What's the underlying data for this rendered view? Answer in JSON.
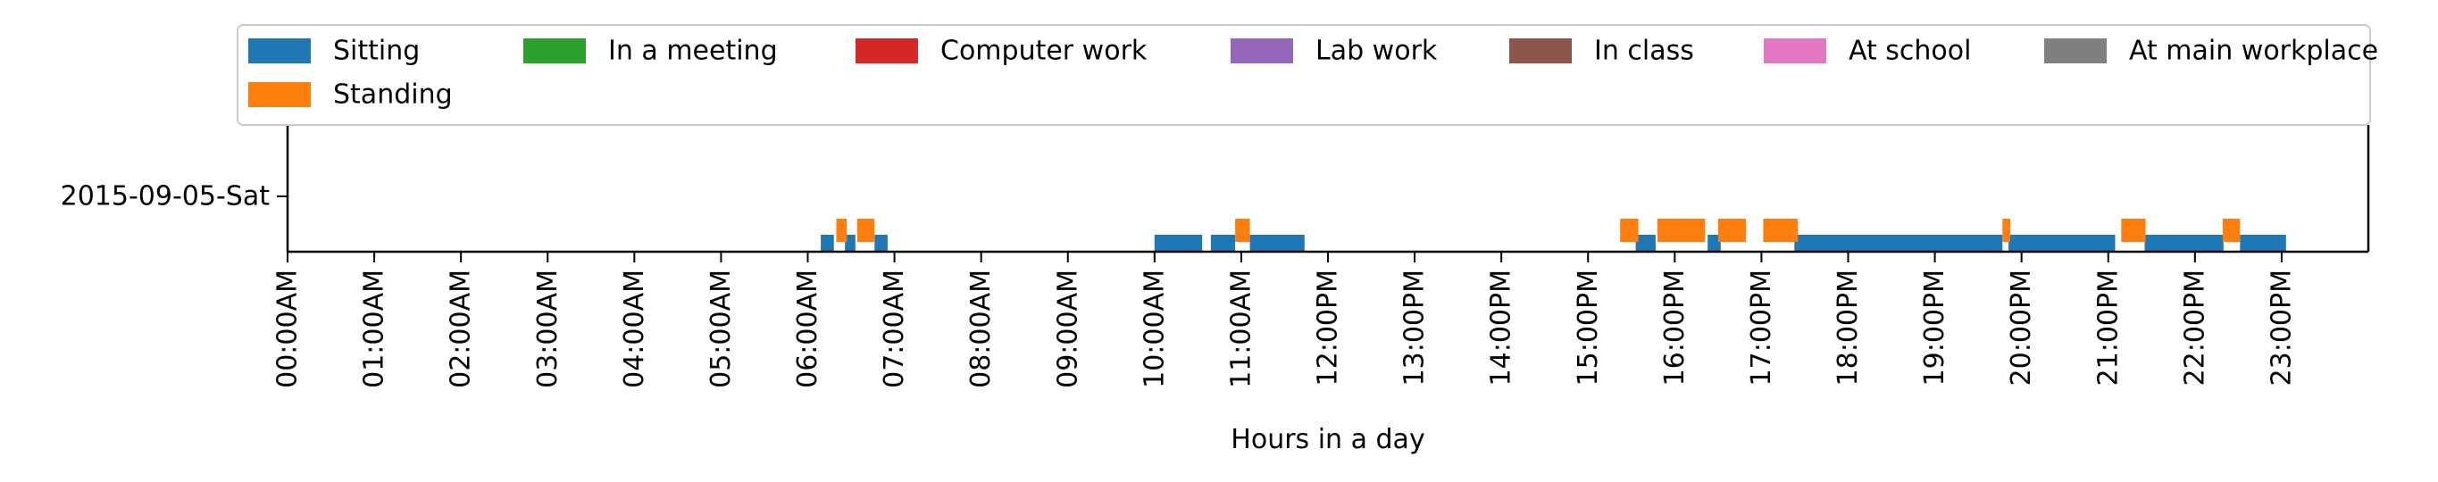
{
  "chart_data": {
    "type": "timeline",
    "xlabel": "Hours in a day",
    "ylabel": "",
    "xlim": [
      0,
      24
    ],
    "x_unit": "hours",
    "x_ticks": [
      0,
      1,
      2,
      3,
      4,
      5,
      6,
      7,
      8,
      9,
      10,
      11,
      12,
      13,
      14,
      15,
      16,
      17,
      18,
      19,
      20,
      21,
      22,
      23
    ],
    "x_tick_labels": [
      "00:00AM",
      "01:00AM",
      "02:00AM",
      "03:00AM",
      "04:00AM",
      "05:00AM",
      "06:00AM",
      "07:00AM",
      "08:00AM",
      "09:00AM",
      "10:00AM",
      "11:00AM",
      "12:00PM",
      "13:00PM",
      "14:00PM",
      "15:00PM",
      "16:00PM",
      "17:00PM",
      "18:00PM",
      "19:00PM",
      "20:00PM",
      "21:00PM",
      "22:00PM",
      "23:00PM"
    ],
    "categories": [
      "2015-09-05-Sat"
    ],
    "grid": false,
    "legend_position": "top",
    "legend_columns": 7,
    "series": [
      {
        "name": "Sitting",
        "color": "#1f77b4",
        "level": "lower",
        "intervals": [
          [
            6.15,
            6.3
          ],
          [
            6.43,
            6.55
          ],
          [
            6.77,
            6.92
          ],
          [
            10.0,
            10.55
          ],
          [
            10.65,
            10.93
          ],
          [
            11.1,
            11.73
          ],
          [
            15.55,
            15.78
          ],
          [
            16.38,
            16.53
          ],
          [
            17.38,
            19.78
          ],
          [
            19.85,
            21.08
          ],
          [
            21.42,
            22.33
          ],
          [
            22.52,
            23.05
          ]
        ]
      },
      {
        "name": "Standing",
        "color": "#ff7f0e",
        "level": "upper",
        "intervals": [
          [
            6.33,
            6.45
          ],
          [
            6.57,
            6.77
          ],
          [
            10.93,
            11.1
          ],
          [
            15.37,
            15.58
          ],
          [
            15.8,
            16.35
          ],
          [
            16.5,
            16.82
          ],
          [
            17.02,
            17.42
          ],
          [
            19.78,
            19.87
          ],
          [
            21.15,
            21.43
          ],
          [
            22.32,
            22.52
          ]
        ]
      },
      {
        "name": "In a meeting",
        "color": "#2ca02c",
        "level": "lower",
        "intervals": []
      },
      {
        "name": "Computer work",
        "color": "#d62728",
        "level": "lower",
        "intervals": []
      },
      {
        "name": "Lab work",
        "color": "#9467bd",
        "level": "lower",
        "intervals": []
      },
      {
        "name": "In class",
        "color": "#8c564b",
        "level": "lower",
        "intervals": []
      },
      {
        "name": "At school",
        "color": "#e377c2",
        "level": "lower",
        "intervals": []
      },
      {
        "name": "At main workplace",
        "color": "#7f7f7f",
        "level": "lower",
        "intervals": []
      }
    ],
    "legend_order": [
      "Sitting",
      "In a meeting",
      "Computer work",
      "Lab work",
      "In class",
      "At school",
      "At main workplace",
      "Standing"
    ]
  }
}
